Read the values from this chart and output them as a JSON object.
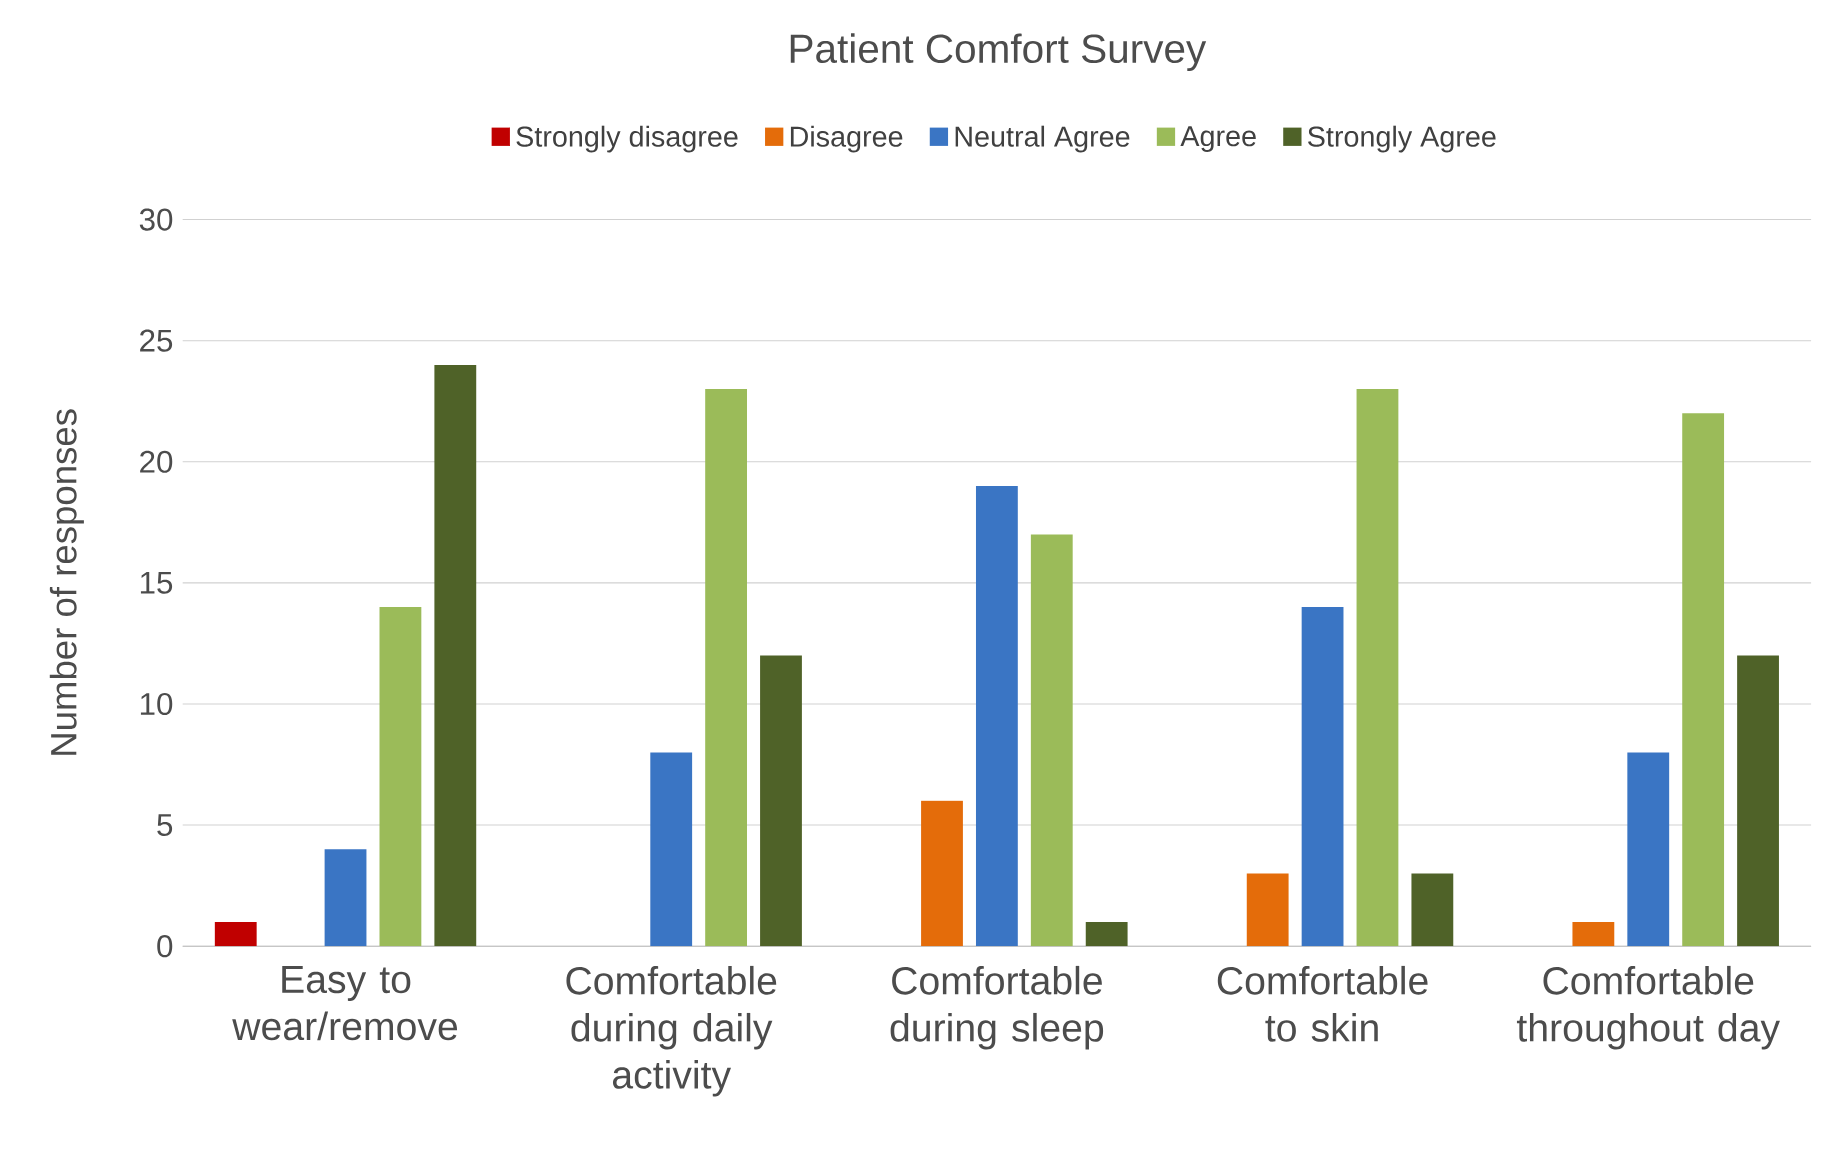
{
  "chart_data": {
    "type": "bar",
    "title": "Patient Comfort Survey",
    "ylabel": "Number of responses",
    "categories": [
      "Easy to wear/remove",
      "Comfortable during daily activity",
      "Comfortable during sleep",
      "Comfortable to skin",
      "Comfortable throughout day"
    ],
    "series": [
      {
        "name": "Strongly disagree",
        "color": "#c00000",
        "values": [
          1,
          0,
          0,
          0,
          0
        ]
      },
      {
        "name": "Disagree",
        "color": "#e46c0a",
        "values": [
          0,
          0,
          6,
          3,
          1
        ]
      },
      {
        "name": "Neutral Agree",
        "color": "#3a75c4",
        "values": [
          4,
          8,
          19,
          14,
          8
        ]
      },
      {
        "name": "Agree",
        "color": "#9bbb59",
        "values": [
          14,
          23,
          17,
          23,
          22
        ]
      },
      {
        "name": "Strongly Agree",
        "color": "#4f6228",
        "values": [
          24,
          12,
          1,
          3,
          12
        ]
      }
    ],
    "ylim": [
      0,
      30
    ],
    "yticks": [
      0,
      5,
      10,
      15,
      20,
      25,
      30
    ],
    "grid": "y",
    "legend": "top"
  }
}
